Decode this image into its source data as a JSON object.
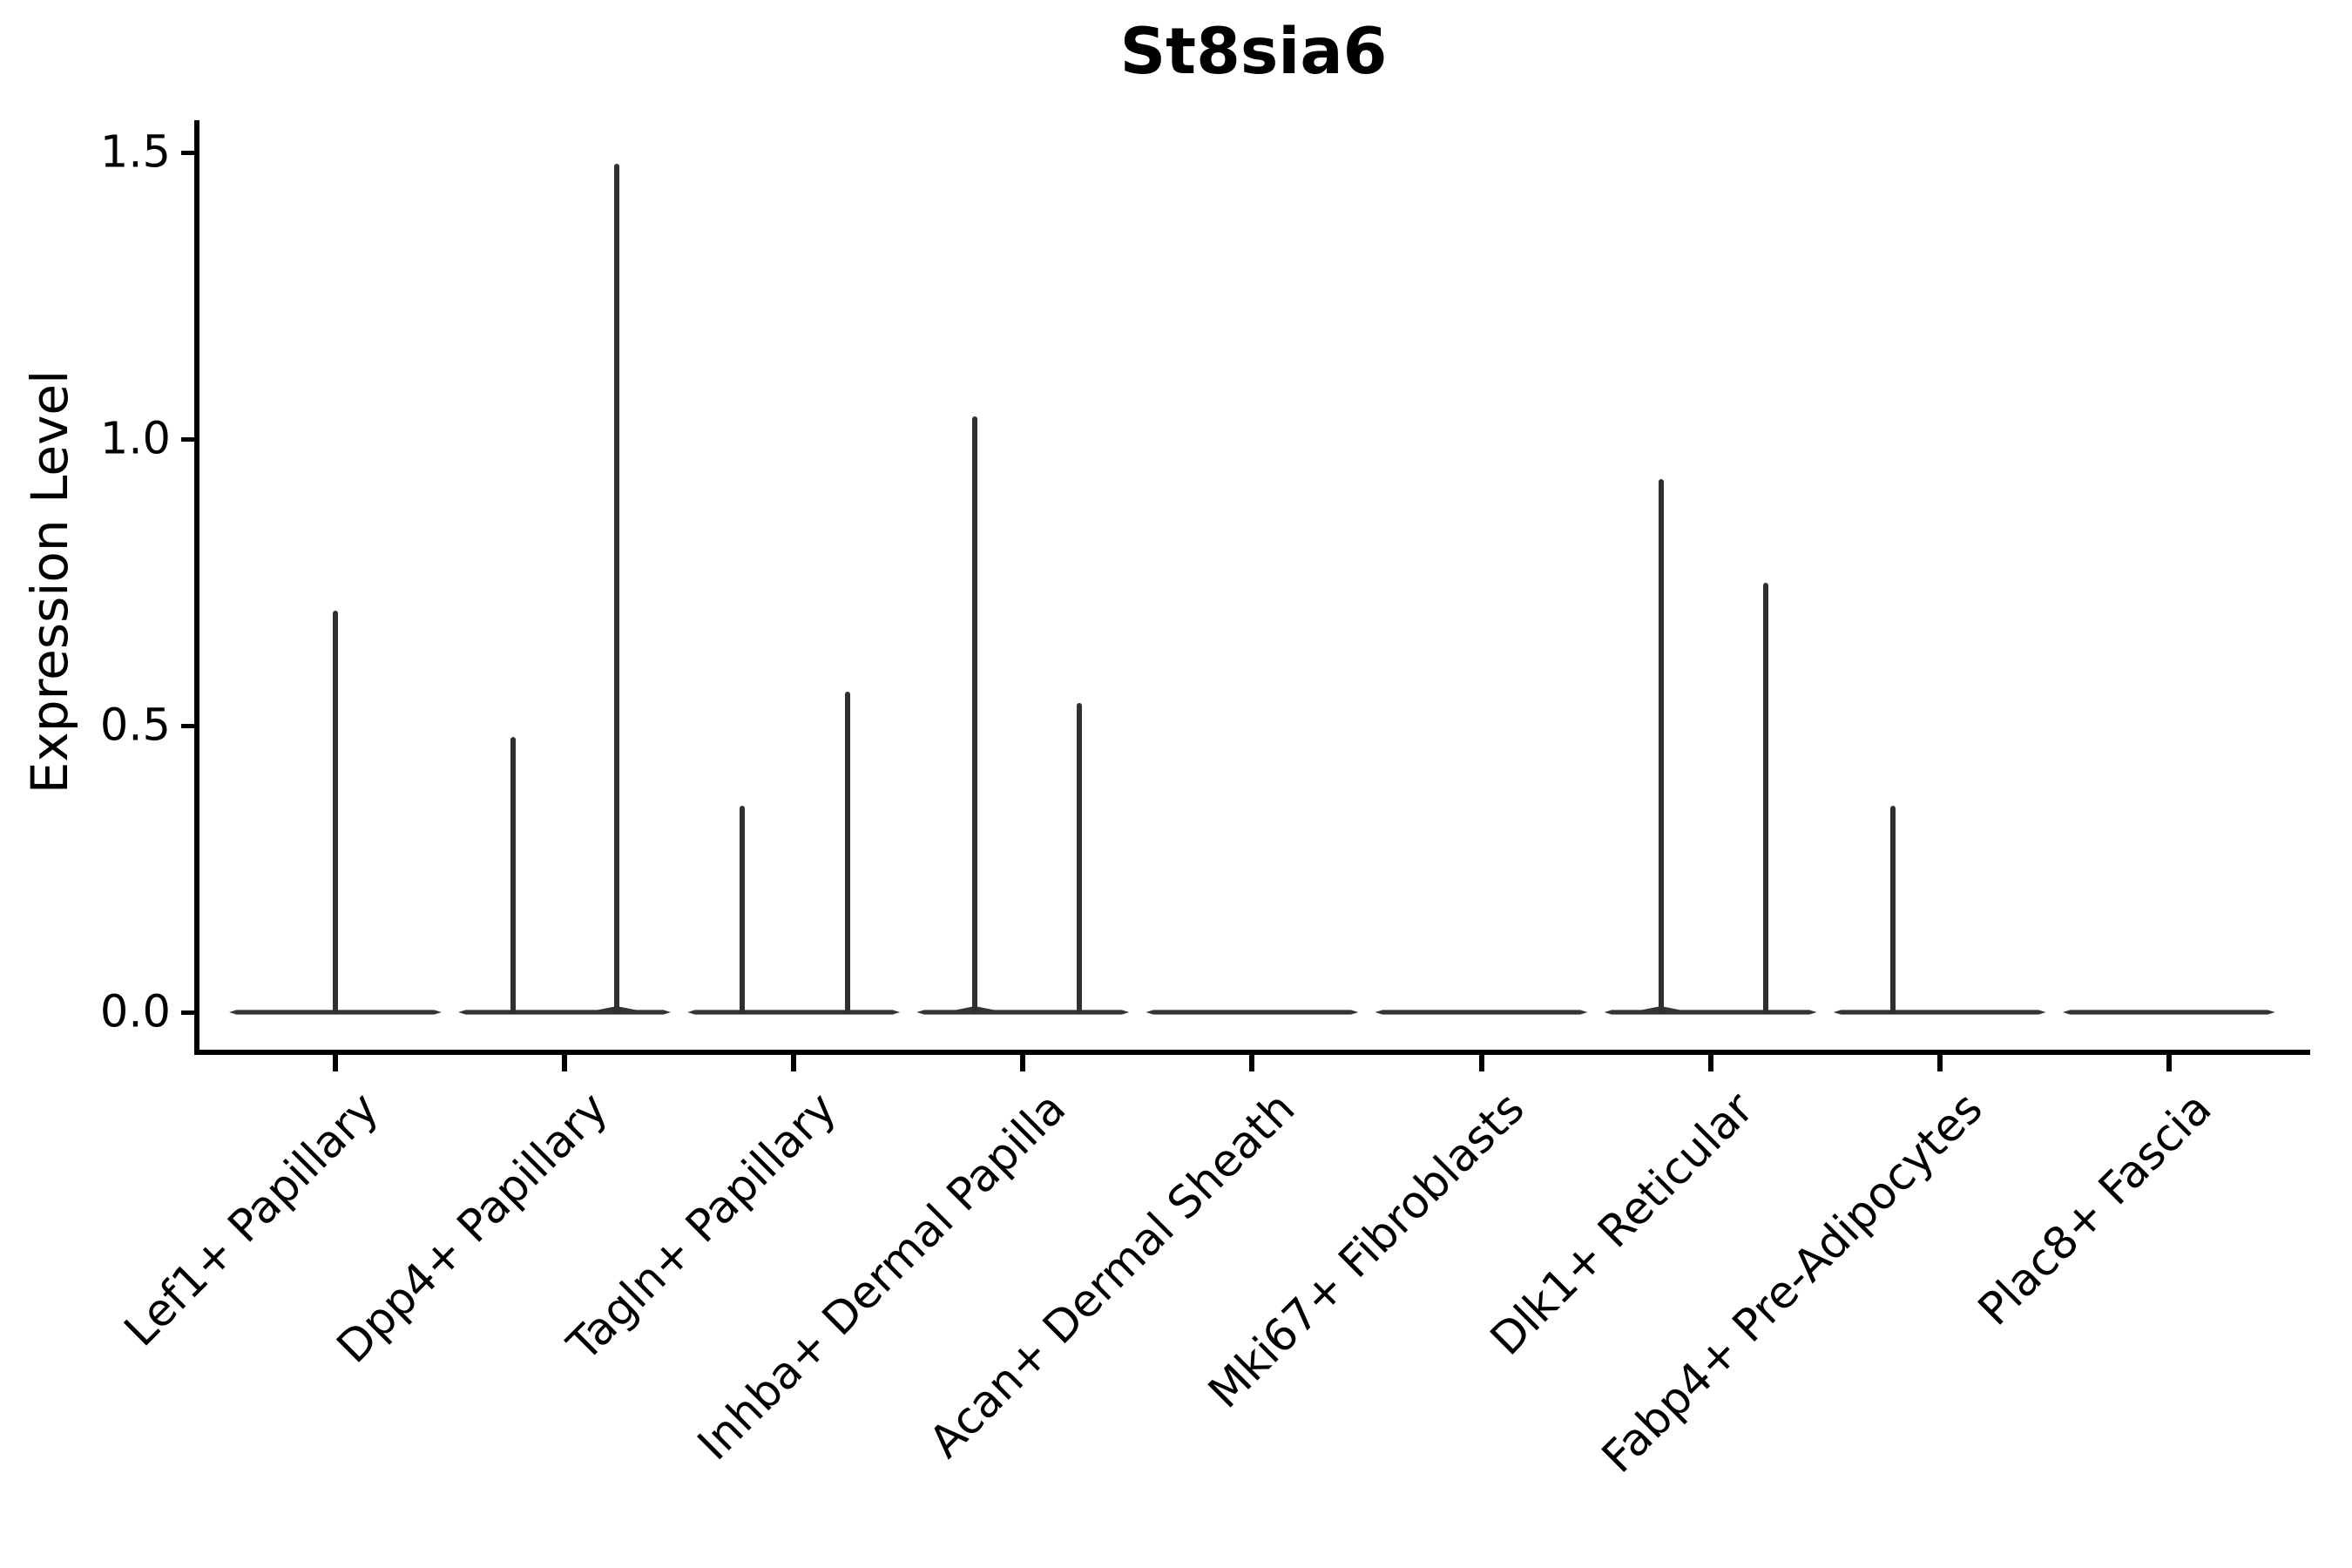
{
  "chart_data": {
    "type": "violin",
    "title": "St8sia6",
    "ylabel": "Expression Level",
    "xlabel": "",
    "grid": false,
    "legend": false,
    "ylim": [
      -0.07,
      1.55
    ],
    "ytick_labels": [
      "0.0",
      "0.5",
      "1.0",
      "1.5"
    ],
    "ytick_values": [
      0.0,
      0.5,
      1.0,
      1.5
    ],
    "axis_color": "#000000",
    "violin_color": "#343434",
    "categories": [
      {
        "name": "Lef1+ Papillary",
        "base_value": 0.0,
        "spikes": [
          {
            "value": 0.7,
            "offset": 0
          }
        ]
      },
      {
        "name": "Dpp4+ Papillary",
        "base_value": 0.0,
        "spikes": [
          {
            "value": 0.48,
            "offset": -59
          },
          {
            "value": 1.48,
            "offset": 60
          }
        ]
      },
      {
        "name": "Tagln+ Papillary",
        "base_value": 0.0,
        "spikes": [
          {
            "value": 0.36,
            "offset": -59
          },
          {
            "value": 0.56,
            "offset": 62
          }
        ]
      },
      {
        "name": "Inhba+ Dermal Papilla",
        "base_value": 0.0,
        "spikes": [
          {
            "value": 1.04,
            "offset": -55
          },
          {
            "value": 0.54,
            "offset": 65
          }
        ]
      },
      {
        "name": "Acan+ Dermal Sheath",
        "base_value": 0.0,
        "spikes": []
      },
      {
        "name": "Mki67+ Fibroblasts",
        "base_value": 0.0,
        "spikes": []
      },
      {
        "name": "Dlk1+ Reticular",
        "base_value": 0.0,
        "spikes": [
          {
            "value": 0.93,
            "offset": -57
          },
          {
            "value": 0.75,
            "offset": 63
          }
        ]
      },
      {
        "name": "Fabp4+ Pre-Adipocytes",
        "base_value": 0.0,
        "spikes": [
          {
            "value": 0.36,
            "offset": -54
          }
        ]
      },
      {
        "name": "Plac8+ Fascia",
        "base_value": 0.0,
        "spikes": []
      }
    ]
  }
}
